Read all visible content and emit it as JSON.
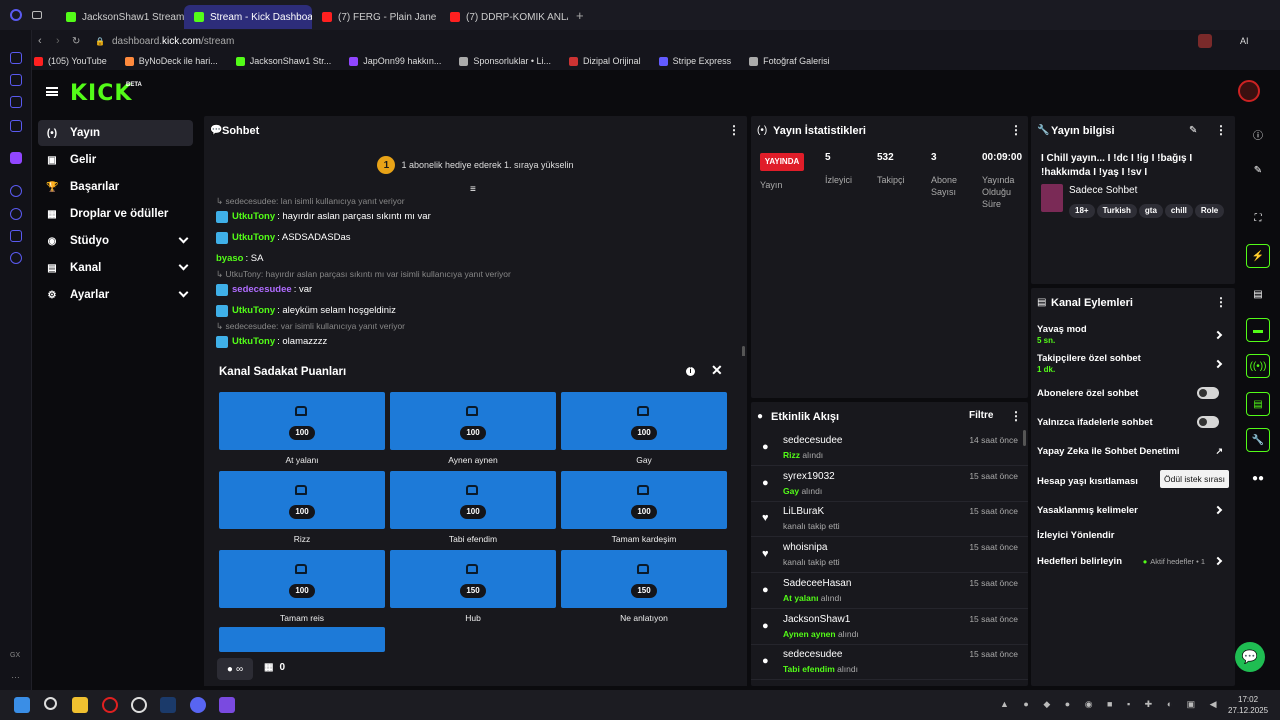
{
  "browser": {
    "tabs": [
      {
        "label": "JacksonShaw1 Stream - W",
        "color": "#53fc18"
      },
      {
        "label": "Stream - Kick Dashboard",
        "color": "#53fc18"
      },
      {
        "label": "(7) FERG - Plain Jane",
        "color": "#ff2020"
      },
      {
        "label": "(7) DDRP-KOMIK ANLAR",
        "color": "#ff2020"
      }
    ],
    "address": {
      "prefix": "dashboard.",
      "domain": "kick.com",
      "path": "/stream"
    },
    "bookmarks": [
      "(105) YouTube",
      "ByNoDeck ile hari...",
      "JacksonShaw1 Str...",
      "JapOnn99 hakkın...",
      "Sponsorluklar • Li...",
      "Dizipal Orijinal",
      "Stripe Express",
      "Fotoğraf Galerisi"
    ],
    "rail_label": "GX",
    "ai_label": "AI"
  },
  "header": {
    "logo": "KICK",
    "beta": "BETA"
  },
  "nav": {
    "items": [
      {
        "label": "Yayın",
        "icon": "(•)"
      },
      {
        "label": "Gelir",
        "icon": "▣"
      },
      {
        "label": "Başarılar",
        "icon": "🏆"
      },
      {
        "label": "Droplar ve ödüller",
        "icon": "▦"
      },
      {
        "label": "Stüdyo",
        "icon": "◉"
      },
      {
        "label": "Kanal",
        "icon": "▤"
      },
      {
        "label": "Ayarlar",
        "icon": "⚙"
      }
    ]
  },
  "chat": {
    "title": "Sohbet",
    "gift_text": "1 abonelik hediye ederek 1. sıraya yükselin",
    "gift_num": "1",
    "lines": [
      {
        "type": "reply",
        "text": "sedecesudee: lan isimli kullanıcıya yanıt veriyor"
      },
      {
        "type": "msg",
        "user": "UtkuTony",
        "color": "g",
        "badge": true,
        "text": ": hayırdır aslan parçası sıkıntı mı var"
      },
      {
        "type": "msg",
        "user": "UtkuTony",
        "color": "g",
        "badge": true,
        "text": ": ASDSADASDas"
      },
      {
        "type": "msg",
        "user": "byaso",
        "color": "g",
        "badge": false,
        "text": ": SA"
      },
      {
        "type": "reply",
        "text": "UtkuTony: hayırdır aslan parçası sıkıntı mı var isimli kullanıcıya yanıt veriyor"
      },
      {
        "type": "msg",
        "user": "sedecesudee",
        "color": "p",
        "badge": true,
        "text": ": var"
      },
      {
        "type": "msg",
        "user": "UtkuTony",
        "color": "g",
        "badge": true,
        "text": ": aleyküm selam hoşgeldiniz"
      },
      {
        "type": "reply",
        "text": "sedecesudee: var isimli kullanıcıya yanıt veriyor"
      },
      {
        "type": "msg",
        "user": "UtkuTony",
        "color": "g",
        "badge": true,
        "text": ": olamazzzz"
      }
    ],
    "points_symbol": "∞",
    "store_count": "0"
  },
  "loyalty": {
    "title": "Kanal Sadakat Puanları",
    "rewards": [
      {
        "label": "At yalanı",
        "cost": "100"
      },
      {
        "label": "Aynen aynen",
        "cost": "100"
      },
      {
        "label": "Gay",
        "cost": "100"
      },
      {
        "label": "Rizz",
        "cost": "100"
      },
      {
        "label": "Tabi efendim",
        "cost": "100"
      },
      {
        "label": "Tamam kardeşim",
        "cost": "100"
      },
      {
        "label": "Tamam reis",
        "cost": "100"
      },
      {
        "label": "Hub",
        "cost": "150"
      },
      {
        "label": "Ne anlatıyon",
        "cost": "150"
      }
    ]
  },
  "stats": {
    "title": "Yayın İstatistikleri",
    "live_label": "YAYINDA",
    "live_sub": "Yayın",
    "viewers": "5",
    "viewers_label": "İzleyici",
    "followers": "532",
    "followers_label": "Takipçi",
    "subs": "3",
    "subs_label": "Abone Sayısı",
    "duration": "00:09:00",
    "duration_label": "Yayında Olduğu Süre"
  },
  "activity": {
    "title": "Etkinlik Akışı",
    "filter": "Filtre",
    "items": [
      {
        "name": "sedecesudee",
        "reward": "Rizz",
        "suffix": " alındı",
        "time": "14 saat önce",
        "kind": "points"
      },
      {
        "name": "syrex19032",
        "reward": "Gay",
        "suffix": " alındı",
        "time": "15 saat önce",
        "kind": "points"
      },
      {
        "name": "LiLBuraK",
        "reward": "",
        "suffix": "kanalı takip etti",
        "time": "15 saat önce",
        "kind": "follow"
      },
      {
        "name": "whoisnipa",
        "reward": "",
        "suffix": "kanalı takip etti",
        "time": "15 saat önce",
        "kind": "follow"
      },
      {
        "name": "SadeceeHasan",
        "reward": "At yalanı",
        "suffix": " alındı",
        "time": "15 saat önce",
        "kind": "points"
      },
      {
        "name": "JacksonShaw1",
        "reward": "Aynen aynen",
        "suffix": " alındı",
        "time": "15 saat önce",
        "kind": "points"
      },
      {
        "name": "sedecesudee",
        "reward": "Tabi efendim",
        "suffix": " alındı",
        "time": "15 saat önce",
        "kind": "points"
      }
    ]
  },
  "info": {
    "title": "Yayın bilgisi",
    "stream_title": "I Chill yayın... I !dc I !ig I !bağış I !hakkımda I !yaş I !sv I",
    "category": "Sadece Sohbet",
    "tags": [
      "18+",
      "Turkish",
      "gta",
      "chill",
      "Role"
    ]
  },
  "actions": {
    "title": "Kanal Eylemleri",
    "slow_mode": "Yavaş mod",
    "slow_value": "5 sn.",
    "followers_only": "Takipçilere özel sohbet",
    "followers_value": "1 dk.",
    "subs_only": "Abonelere özel sohbet",
    "emotes_only": "Yalnızca ifadelerle sohbet",
    "ai_moderation": "Yapay Zeka ile Sohbet Denetimi",
    "age_restriction": "Hesap yaşı kısıtlaması",
    "banned_words": "Yasaklanmış kelimeler",
    "redirect": "İzleyici Yönlendir",
    "goals": "Hedefleri belirleyin",
    "goals_status": "Aktif hedefler • 1"
  },
  "tooltip": "Ödül istek sırası",
  "clock": {
    "time": "17:02",
    "date": "27.12.2025"
  }
}
